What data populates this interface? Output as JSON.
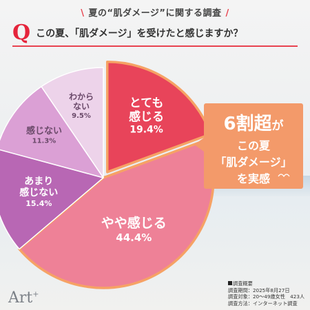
{
  "header": {
    "slash_left": "\\",
    "title": "夏の“肌ダメージ”に関する調査",
    "slash_right": "/"
  },
  "question": {
    "mark": "Q",
    "text": "この夏、「肌ダメージ」を受けたと感じますか？"
  },
  "chart_data": {
    "type": "pie",
    "title": "この夏、「肌ダメージ」を受けたと感じますか？",
    "slices": [
      {
        "label": "とても感じる",
        "label_lines": [
          "とても",
          "感じる"
        ],
        "value": 19.4,
        "value_label": "19.4%",
        "color": "#e8445a"
      },
      {
        "label": "やや感じる",
        "label_lines": [
          "やや感じる"
        ],
        "value": 44.4,
        "value_label": "44.4%",
        "color": "#ee8197"
      },
      {
        "label": "あまり感じない",
        "label_lines": [
          "あまり",
          "感じない"
        ],
        "value": 15.4,
        "value_label": "15.4%",
        "color": "#b867b4"
      },
      {
        "label": "感じない",
        "label_lines": [
          "感じない"
        ],
        "value": 11.3,
        "value_label": "11.3%",
        "color": "#dba0d5"
      },
      {
        "label": "わからない",
        "label_lines": [
          "わから",
          "ない"
        ],
        "value": 9.5,
        "value_label": "9.5%",
        "color": "#edd3ea"
      }
    ]
  },
  "callout": {
    "big": "6割超",
    "suffix": "が",
    "line2": "この夏",
    "line3": "「肌ダメージ」",
    "line4": "を実感",
    "color": "#f39a6a"
  },
  "footer": {
    "heading": "調査概要",
    "period": "調査期間：2025年8月27日",
    "target": "調査対象：20〜49歳女性　423人",
    "method": "調査方法：インターネット調査"
  },
  "logo": {
    "text": "Art",
    "sup": "+"
  }
}
